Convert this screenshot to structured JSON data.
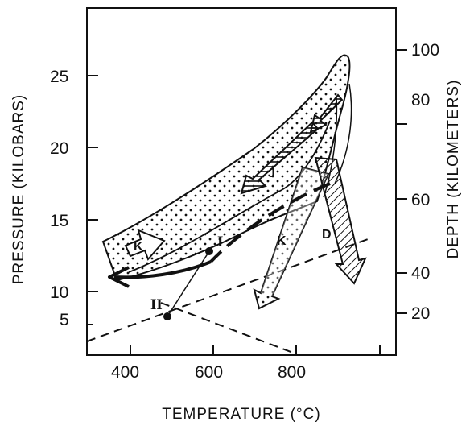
{
  "axes": {
    "x_title": "TEMPERATURE (°C)",
    "x_ticks": [
      "400",
      "600",
      "800"
    ],
    "left_title": "PRESSURE (KILOBARS)",
    "left_ticks": [
      "5",
      "10",
      "15",
      "20",
      "25"
    ],
    "right_title": "DEPTH (KILOMETERS)",
    "right_ticks": [
      "20",
      "40",
      "60",
      "80",
      "100"
    ]
  },
  "labels": {
    "k_left": "K",
    "j": "J",
    "k_center": "K",
    "d": "D",
    "point_1": "I",
    "point_2": "II"
  }
}
